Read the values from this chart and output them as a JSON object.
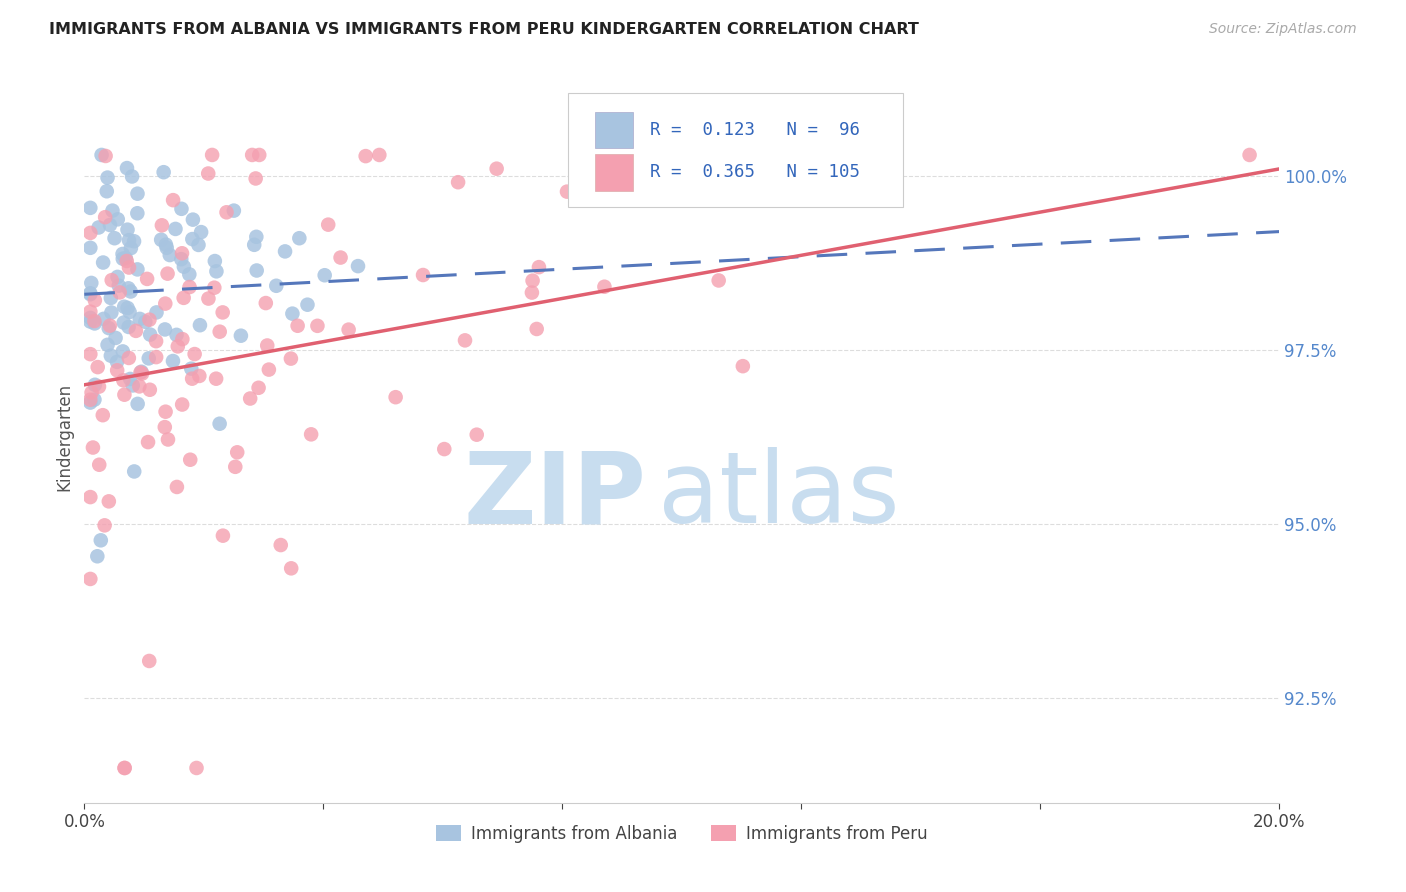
{
  "title": "IMMIGRANTS FROM ALBANIA VS IMMIGRANTS FROM PERU KINDERGARTEN CORRELATION CHART",
  "source": "Source: ZipAtlas.com",
  "ylabel": "Kindergarten",
  "yticks": [
    92.5,
    95.0,
    97.5,
    100.0
  ],
  "ytick_labels": [
    "92.5%",
    "95.0%",
    "97.5%",
    "100.0%"
  ],
  "xlim": [
    0.0,
    0.2
  ],
  "ylim": [
    91.0,
    101.5
  ],
  "albania_R": 0.123,
  "albania_N": 96,
  "peru_R": 0.365,
  "peru_N": 105,
  "albania_color": "#a8c4e0",
  "peru_color": "#f4a0b0",
  "albania_line_color": "#5577bb",
  "peru_line_color": "#e06070",
  "watermark_zip": "ZIP",
  "watermark_atlas": "atlas",
  "watermark_color_zip": "#c8ddef",
  "watermark_color_atlas": "#c8ddef",
  "grid_color": "#dddddd",
  "background": "#ffffff"
}
